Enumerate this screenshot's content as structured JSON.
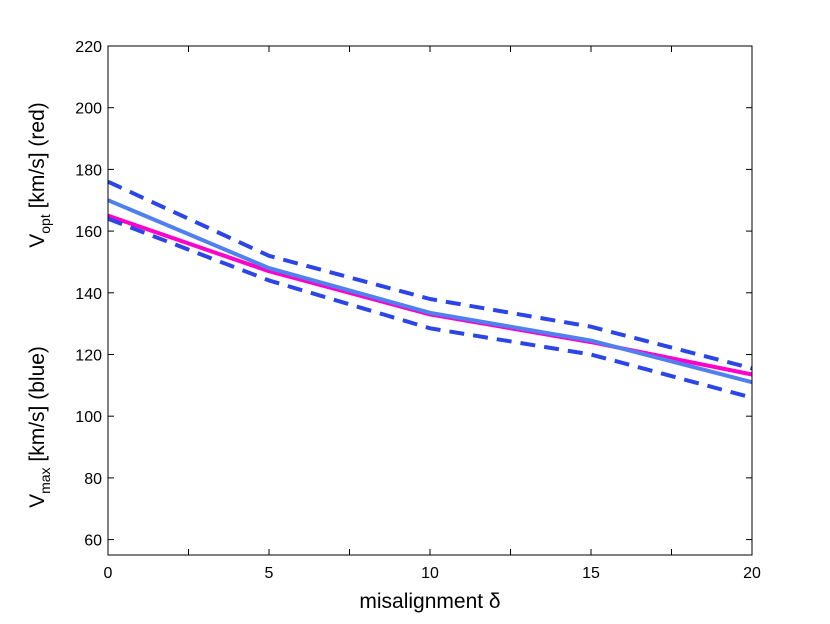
{
  "chart_data": {
    "type": "line",
    "title": "",
    "xlabel": "misalignment δ",
    "ylabel_top": {
      "main": "V",
      "sub": "opt",
      "rest": " [km/s] (red)"
    },
    "ylabel_bottom": {
      "main": "V",
      "sub": "max",
      "rest": " [km/s] (blue)"
    },
    "xlim": [
      0,
      20
    ],
    "ylim": [
      55,
      220
    ],
    "xticks": [
      0,
      5,
      10,
      15,
      20
    ],
    "xticks_minor": [
      2.5,
      7.5,
      12.5,
      17.5
    ],
    "yticks": [
      60,
      80,
      100,
      120,
      140,
      160,
      180,
      200,
      220
    ],
    "grid": false,
    "legend": "none",
    "series": [
      {
        "color": "#ff00cc",
        "style": "solid",
        "x": [
          0,
          5,
          10,
          15,
          20
        ],
        "y": [
          165,
          147,
          133,
          124,
          113.5
        ]
      },
      {
        "color": "#2b45e8",
        "style": "dashed",
        "x": [
          0,
          5,
          10,
          15,
          20
        ],
        "y": [
          176,
          152,
          138,
          129,
          115.5
        ]
      },
      {
        "color": "#2b45e8",
        "style": "dashed",
        "x": [
          0,
          5,
          10,
          15,
          20
        ],
        "y": [
          164,
          144,
          128.5,
          120,
          106
        ]
      },
      {
        "color": "#4f80ee",
        "style": "solid",
        "x": [
          0,
          5,
          10,
          15,
          20
        ],
        "y": [
          170,
          148,
          133.5,
          124.5,
          111
        ]
      }
    ]
  }
}
